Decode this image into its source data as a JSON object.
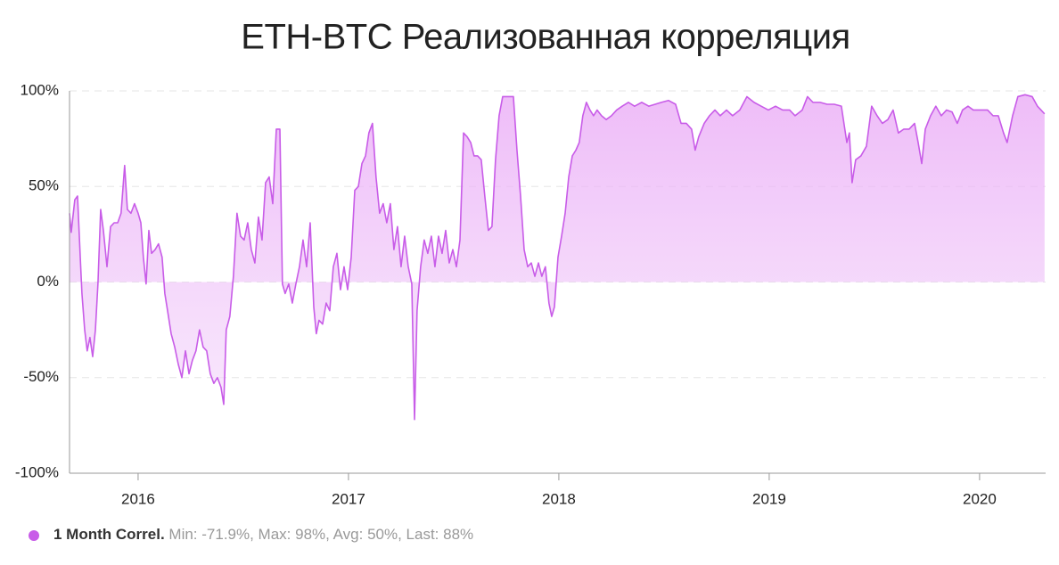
{
  "chart_data": {
    "type": "area",
    "title": "ETH-BTC Реализованная корреляция",
    "series": [
      {
        "name": "1 Month Correl.",
        "color": "#c85ce8",
        "x": [
          2015.674,
          2015.682,
          2015.699,
          2015.712,
          2015.725,
          2015.733,
          2015.746,
          2015.758,
          2015.771,
          2015.784,
          2015.797,
          2015.809,
          2015.822,
          2015.835,
          2015.852,
          2015.869,
          2015.886,
          2015.903,
          2015.919,
          2015.936,
          2015.949,
          2015.966,
          2015.983,
          2016.0,
          2016.013,
          2016.025,
          2016.038,
          2016.051,
          2016.064,
          2016.081,
          2016.097,
          2016.114,
          2016.127,
          2016.14,
          2016.157,
          2016.174,
          2016.191,
          2016.208,
          2016.225,
          2016.242,
          2016.258,
          2016.275,
          2016.292,
          2016.309,
          2016.326,
          2016.343,
          2016.36,
          2016.377,
          2016.394,
          2016.407,
          2016.419,
          2016.436,
          2016.453,
          2016.47,
          2016.487,
          2016.504,
          2016.521,
          2016.538,
          2016.555,
          2016.572,
          2016.589,
          2016.606,
          2016.623,
          2016.64,
          2016.657,
          2016.674,
          2016.686,
          2016.699,
          2016.716,
          2016.733,
          2016.75,
          2016.767,
          2016.784,
          2016.801,
          2016.818,
          2016.835,
          2016.847,
          2016.86,
          2016.877,
          2016.894,
          2016.911,
          2016.928,
          2016.945,
          2016.962,
          2016.979,
          2016.996,
          2017.013,
          2017.03,
          2017.047,
          2017.064,
          2017.081,
          2017.097,
          2017.114,
          2017.131,
          2017.148,
          2017.165,
          2017.182,
          2017.199,
          2017.216,
          2017.233,
          2017.25,
          2017.267,
          2017.284,
          2017.301,
          2017.314,
          2017.326,
          2017.343,
          2017.36,
          2017.377,
          2017.394,
          2017.411,
          2017.428,
          2017.445,
          2017.462,
          2017.479,
          2017.496,
          2017.513,
          2017.53,
          2017.547,
          2017.564,
          2017.581,
          2017.597,
          2017.614,
          2017.631,
          2017.648,
          2017.665,
          2017.682,
          2017.699,
          2017.716,
          2017.733,
          2017.75,
          2017.767,
          2017.784,
          2017.801,
          2017.818,
          2017.835,
          2017.852,
          2017.869,
          2017.886,
          2017.903,
          2017.919,
          2017.936,
          2017.953,
          2017.966,
          2017.979,
          2017.996,
          2018.013,
          2018.03,
          2018.047,
          2018.064,
          2018.081,
          2018.097,
          2018.114,
          2018.131,
          2018.148,
          2018.165,
          2018.182,
          2018.203,
          2018.225,
          2018.25,
          2018.275,
          2018.301,
          2018.331,
          2018.36,
          2018.394,
          2018.428,
          2018.458,
          2018.487,
          2018.521,
          2018.555,
          2018.581,
          2018.606,
          2018.631,
          2018.648,
          2018.665,
          2018.691,
          2018.716,
          2018.742,
          2018.767,
          2018.797,
          2018.826,
          2018.86,
          2018.894,
          2018.928,
          2018.962,
          2018.996,
          2019.03,
          2019.064,
          2019.097,
          2019.123,
          2019.157,
          2019.182,
          2019.208,
          2019.242,
          2019.275,
          2019.309,
          2019.343,
          2019.369,
          2019.381,
          2019.394,
          2019.411,
          2019.436,
          2019.462,
          2019.487,
          2019.513,
          2019.538,
          2019.564,
          2019.589,
          2019.614,
          2019.64,
          2019.665,
          2019.691,
          2019.708,
          2019.725,
          2019.742,
          2019.767,
          2019.792,
          2019.818,
          2019.843,
          2019.869,
          2019.894,
          2019.919,
          2019.945,
          2019.97,
          2020.004,
          2020.038,
          2020.064,
          2020.089,
          2020.114,
          2020.131,
          2020.157,
          2020.182,
          2020.216,
          2020.25,
          2020.275,
          2020.292,
          2020.309
        ],
        "values": [
          36,
          26,
          43,
          45,
          13,
          -6,
          -25,
          -36,
          -29,
          -39,
          -25,
          -1,
          38,
          27,
          8,
          29,
          31,
          31,
          36,
          61,
          38,
          36,
          41,
          36,
          31,
          13,
          -1,
          27,
          15,
          17,
          20,
          13,
          -6,
          -15,
          -27,
          -34,
          -43,
          -50,
          -36,
          -48,
          -41,
          -36,
          -25,
          -34,
          -36,
          -48,
          -53,
          -50,
          -55,
          -64,
          -25,
          -18,
          3,
          36,
          24,
          22,
          31,
          17,
          10,
          34,
          22,
          52,
          55,
          41,
          80,
          80,
          -1,
          -6,
          -1,
          -11,
          -1,
          8,
          22,
          8,
          31,
          -13,
          -27,
          -20,
          -22,
          -11,
          -15,
          8,
          15,
          -4,
          8,
          -4,
          13,
          48,
          50,
          62,
          66,
          78,
          83,
          55,
          36,
          41,
          31,
          41,
          17,
          29,
          8,
          24,
          8,
          -1,
          -71.9,
          -15,
          8,
          22,
          15,
          24,
          8,
          24,
          15,
          27,
          10,
          17,
          8,
          22,
          78,
          76,
          73,
          66,
          66,
          64,
          45,
          27,
          29,
          64,
          87,
          97,
          97,
          97,
          97,
          69,
          45,
          17,
          8,
          10,
          3,
          10,
          3,
          8,
          -11,
          -18,
          -13,
          13,
          24,
          36,
          55,
          66,
          69,
          73,
          87,
          94,
          90,
          87,
          90,
          87,
          85,
          87,
          90,
          92,
          94,
          92,
          94,
          92,
          93,
          94,
          95,
          93,
          83,
          83,
          80,
          69,
          76,
          83,
          87,
          90,
          87,
          90,
          87,
          90,
          97,
          94,
          92,
          90,
          92,
          90,
          90,
          87,
          90,
          97,
          94,
          94,
          93,
          93,
          92,
          73,
          78,
          52,
          64,
          66,
          71,
          92,
          87,
          83,
          85,
          90,
          78,
          80,
          80,
          83,
          73,
          62,
          80,
          87,
          92,
          87,
          90,
          89,
          83,
          90,
          92,
          90,
          90,
          90,
          87,
          87,
          78,
          73,
          87,
          97,
          98,
          97,
          92,
          90,
          88
        ]
      }
    ],
    "legend_stats": "Min: -71.9%, Max: 98%, Avg: 50%, Last: 88%",
    "xlim": [
      2015.674,
      2020.314
    ],
    "xticks": [
      2016,
      2017,
      2018,
      2019,
      2020
    ],
    "ylim": [
      -100,
      100
    ],
    "yticks": [
      {
        "value": -100,
        "label": "-100%"
      },
      {
        "value": -50,
        "label": "-50%"
      },
      {
        "value": 0,
        "label": "0%"
      },
      {
        "value": 50,
        "label": "50%"
      },
      {
        "value": 100,
        "label": "100%"
      }
    ],
    "grid": true
  }
}
